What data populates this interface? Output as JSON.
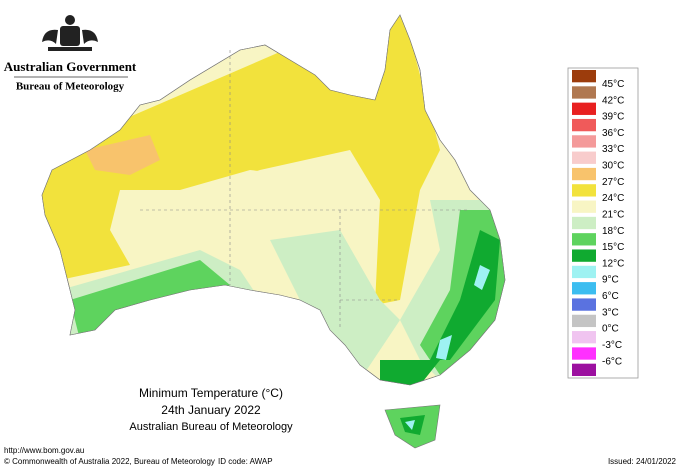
{
  "header": {
    "government": "Australian Government",
    "bureau": "Bureau of Meteorology"
  },
  "map": {
    "title": "Minimum Temperature (°C)",
    "date": "24th January 2022",
    "source": "Australian Bureau of Meteorology"
  },
  "legend": {
    "labels": [
      "45°C",
      "42°C",
      "39°C",
      "36°C",
      "33°C",
      "30°C",
      "27°C",
      "24°C",
      "21°C",
      "18°C",
      "15°C",
      "12°C",
      "9°C",
      "6°C",
      "3°C",
      "0°C",
      "-3°C",
      "-6°C"
    ],
    "colors": [
      "#9c3c0c",
      "#b07850",
      "#e82020",
      "#f05a5a",
      "#f49a9a",
      "#f8cccc",
      "#f8c36c",
      "#f2e23c",
      "#f8f5c4",
      "#cdeec4",
      "#5ed35e",
      "#10aa30",
      "#9ef2f2",
      "#3cbdf0",
      "#5a72e0",
      "#c4c4c4",
      "#f0c4f0",
      "#ff30ff",
      "#9c10a0"
    ]
  },
  "footer": {
    "url": "http://www.bom.gov.au",
    "copyright": "© Commonwealth of Australia 2022, Bureau of Meteorology",
    "id_code": "ID code: AWAP",
    "issued": "Issued: 24/01/2022"
  }
}
